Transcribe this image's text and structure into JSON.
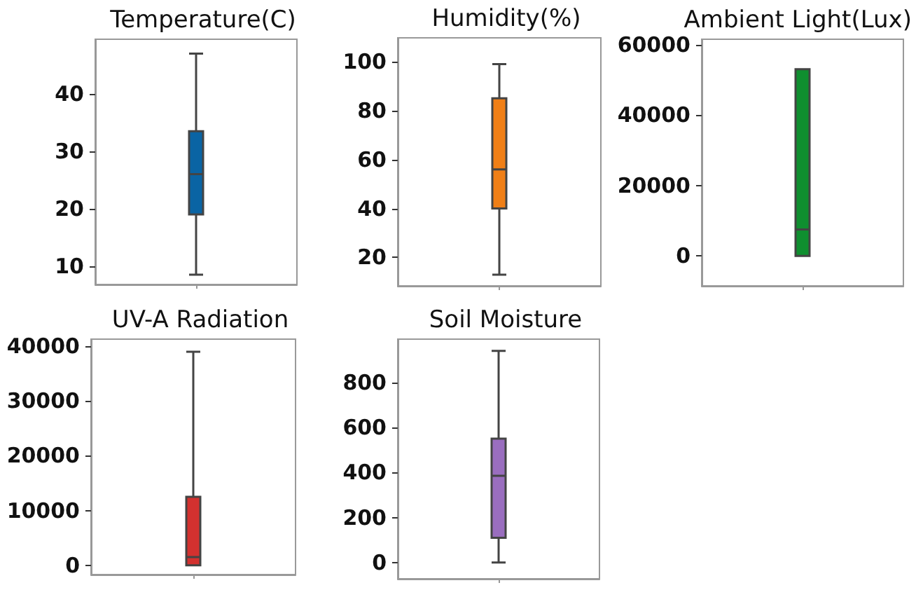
{
  "chart_data": [
    {
      "type": "box",
      "title": "Temperature(C)",
      "categories": [
        null
      ],
      "color": "#0a64a4",
      "boxes": [
        {
          "low": 8.5,
          "q1": 19,
          "median": 26,
          "q3": 33.5,
          "high": 47
        }
      ],
      "ylim": [
        6.8,
        49.5
      ],
      "yticks": [
        10,
        20,
        30,
        40
      ],
      "tick_labels": "y",
      "grid": false
    },
    {
      "type": "box",
      "title": "Humidity(%)",
      "categories": [
        null
      ],
      "color": "#f07f16",
      "boxes": [
        {
          "low": 13,
          "q1": 40,
          "median": 56,
          "q3": 85,
          "high": 99
        }
      ],
      "ylim": [
        8.4,
        109.7
      ],
      "yticks": [
        20,
        40,
        60,
        80,
        100
      ],
      "tick_labels": "y",
      "grid": false
    },
    {
      "type": "box",
      "title": "Ambient Light(Lux)",
      "categories": [
        null
      ],
      "color": "#0f8f2f",
      "boxes": [
        {
          "low": 0,
          "q1": 0,
          "median": 7500,
          "q3": 53000,
          "high": 53000
        }
      ],
      "ylim": [
        -8500,
        61500
      ],
      "yticks": [
        0,
        20000,
        40000,
        60000
      ],
      "tick_labels": "y",
      "grid": false
    },
    {
      "type": "box",
      "title": "UV-A Radiation",
      "categories": [
        null
      ],
      "color": "#d3312f",
      "boxes": [
        {
          "low": 0,
          "q1": 0,
          "median": 1500,
          "q3": 12500,
          "high": 39000
        }
      ],
      "ylim": [
        -1700,
        41300
      ],
      "yticks": [
        0,
        10000,
        20000,
        30000,
        40000
      ],
      "tick_labels": "y",
      "grid": false
    },
    {
      "type": "box",
      "title": "Soil Moisture",
      "categories": [
        null
      ],
      "color": "#9a6ebf",
      "boxes": [
        {
          "low": 0,
          "q1": 110,
          "median": 385,
          "q3": 550,
          "high": 940
        }
      ],
      "ylim": [
        -72,
        992
      ],
      "yticks": [
        0,
        200,
        400,
        600,
        800
      ],
      "tick_labels": "y",
      "grid": false
    }
  ]
}
